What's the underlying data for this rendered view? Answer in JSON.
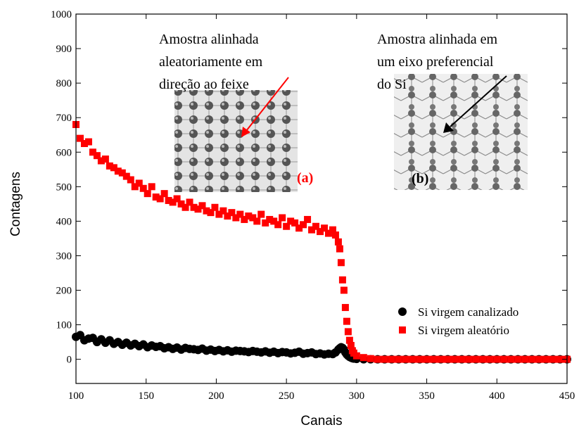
{
  "chart_data": {
    "type": "scatter",
    "xlabel": "Canais",
    "ylabel": "Contagens",
    "xlim": [
      100,
      450
    ],
    "xticks": [
      100,
      150,
      200,
      250,
      300,
      350,
      400,
      450
    ],
    "ylim": [
      -70,
      1000
    ],
    "yticks": [
      0,
      100,
      200,
      300,
      400,
      500,
      600,
      700,
      800,
      900,
      1000
    ],
    "legend": "lower right",
    "x": [
      100,
      103,
      106,
      109,
      112,
      115,
      118,
      121,
      124,
      127,
      130,
      133,
      136,
      139,
      142,
      145,
      148,
      151,
      154,
      157,
      160,
      163,
      166,
      169,
      172,
      175,
      178,
      181,
      184,
      187,
      190,
      193,
      196,
      199,
      202,
      205,
      208,
      211,
      214,
      217,
      220,
      223,
      226,
      229,
      232,
      235,
      238,
      241,
      244,
      247,
      250,
      253,
      256,
      259,
      262,
      265,
      268,
      271,
      274,
      277,
      280,
      283,
      285,
      287,
      288,
      289,
      290,
      291,
      292,
      293,
      294,
      295,
      296,
      297,
      298,
      300,
      305,
      310,
      315,
      320,
      325,
      330,
      335,
      340,
      345,
      350,
      355,
      360,
      365,
      370,
      375,
      380,
      385,
      390,
      395,
      400,
      405,
      410,
      415,
      420,
      425,
      430,
      435,
      440,
      445,
      450
    ],
    "series": [
      {
        "name": "Si virgem canalizado",
        "color": "#000000",
        "marker": "circle",
        "values": [
          65,
          70,
          55,
          60,
          62,
          50,
          58,
          48,
          55,
          45,
          50,
          42,
          48,
          40,
          45,
          38,
          43,
          35,
          40,
          36,
          38,
          32,
          35,
          30,
          34,
          28,
          33,
          30,
          29,
          27,
          31,
          25,
          28,
          24,
          27,
          23,
          26,
          22,
          25,
          24,
          23,
          21,
          24,
          22,
          20,
          23,
          19,
          22,
          18,
          21,
          20,
          17,
          19,
          22,
          16,
          18,
          20,
          15,
          17,
          14,
          16,
          15,
          20,
          28,
          32,
          35,
          33,
          28,
          20,
          14,
          10,
          7,
          5,
          3,
          2,
          1,
          0,
          0,
          0,
          0,
          0,
          0,
          0,
          0,
          0,
          0,
          0,
          0,
          0,
          0,
          0,
          0,
          0,
          0,
          0,
          0,
          0,
          0,
          0,
          0,
          0,
          0,
          0,
          0,
          0,
          0
        ]
      },
      {
        "name": "Si virgem aleatório",
        "color": "#ff0000",
        "marker": "square",
        "values": [
          680,
          640,
          625,
          630,
          600,
          590,
          575,
          580,
          560,
          555,
          545,
          540,
          530,
          520,
          500,
          510,
          495,
          480,
          500,
          470,
          465,
          480,
          460,
          455,
          465,
          450,
          440,
          455,
          440,
          435,
          445,
          430,
          425,
          440,
          420,
          430,
          415,
          425,
          410,
          420,
          405,
          415,
          410,
          400,
          420,
          395,
          405,
          400,
          390,
          410,
          385,
          400,
          395,
          380,
          390,
          405,
          375,
          385,
          370,
          380,
          365,
          375,
          360,
          340,
          320,
          280,
          230,
          200,
          150,
          110,
          80,
          55,
          40,
          25,
          18,
          10,
          5,
          2,
          0,
          0,
          0,
          0,
          0,
          0,
          0,
          0,
          0,
          0,
          0,
          0,
          0,
          0,
          0,
          0,
          0,
          0,
          0,
          0,
          0,
          0,
          0,
          0,
          0,
          0,
          0,
          0
        ]
      }
    ],
    "annotations": [
      "Amostra alinhada",
      "aleatoriamente em",
      "direção ao feixe",
      "Amostra alinhada em",
      "um eixo preferencial",
      "do Si",
      "(a)",
      "(b)"
    ]
  }
}
